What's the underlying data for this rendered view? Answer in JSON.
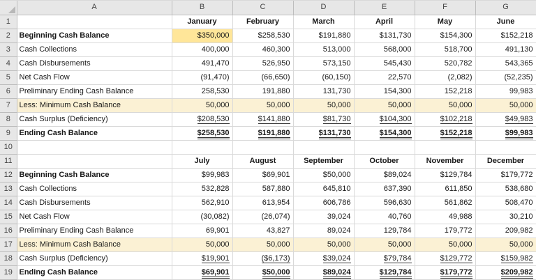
{
  "app": {
    "name": "spreadsheet-cash-budget"
  },
  "colors": {
    "grid_line": "#d9d9d9",
    "header_bg": "#e7e7e7",
    "header_border": "#bdbdbd",
    "cell_b2_highlight": "#ffe699",
    "minimum_row_highlight": "#fbf1d4"
  },
  "columns": [
    "A",
    "B",
    "C",
    "D",
    "E",
    "F",
    "G"
  ],
  "rows": [
    {
      "n": 1,
      "type": "months",
      "label": "",
      "values": [
        "January",
        "February",
        "March",
        "April",
        "May",
        "June"
      ]
    },
    {
      "n": 2,
      "label": "Beginning Cash Balance",
      "label_bold": true,
      "b2_fill": true,
      "values": [
        "$350,000",
        "$258,530",
        "$191,880",
        "$131,730",
        "$154,300",
        "$152,218"
      ]
    },
    {
      "n": 3,
      "label": "Cash Collections",
      "values": [
        "400,000",
        "460,300",
        "513,000",
        "568,000",
        "518,700",
        "491,130"
      ]
    },
    {
      "n": 4,
      "label": "Cash Disbursements",
      "values": [
        "491,470",
        "526,950",
        "573,150",
        "545,430",
        "520,782",
        "543,365"
      ]
    },
    {
      "n": 5,
      "label": "Net Cash Flow",
      "values": [
        "(91,470)",
        "(66,650)",
        "(60,150)",
        "22,570",
        "(2,082)",
        "(52,235)"
      ]
    },
    {
      "n": 6,
      "label": "Preliminary Ending Cash Balance",
      "values": [
        "258,530",
        "191,880",
        "131,730",
        "154,300",
        "152,218",
        "99,983"
      ]
    },
    {
      "n": 7,
      "label": "Less: Minimum Cash Balance",
      "row_fill": true,
      "values": [
        "50,000",
        "50,000",
        "50,000",
        "50,000",
        "50,000",
        "50,000"
      ]
    },
    {
      "n": 8,
      "label": "Cash Surplus (Deficiency)",
      "underline": "single",
      "values": [
        "$208,530",
        "$141,880",
        "$81,730",
        "$104,300",
        "$102,218",
        "$49,983"
      ]
    },
    {
      "n": 9,
      "label": "Ending Cash Balance",
      "label_bold": true,
      "values_bold": true,
      "underline": "double",
      "values": [
        "$258,530",
        "$191,880",
        "$131,730",
        "$154,300",
        "$152,218",
        "$99,983"
      ]
    },
    {
      "n": 10,
      "label": "",
      "values": [
        "",
        "",
        "",
        "",
        "",
        ""
      ]
    },
    {
      "n": 11,
      "type": "months",
      "label": "",
      "values": [
        "July",
        "August",
        "September",
        "October",
        "November",
        "December"
      ]
    },
    {
      "n": 12,
      "label": "Beginning Cash Balance",
      "label_bold": true,
      "values": [
        "$99,983",
        "$69,901",
        "$50,000",
        "$89,024",
        "$129,784",
        "$179,772"
      ]
    },
    {
      "n": 13,
      "label": "Cash Collections",
      "values": [
        "532,828",
        "587,880",
        "645,810",
        "637,390",
        "611,850",
        "538,680"
      ]
    },
    {
      "n": 14,
      "label": "Cash Disbursements",
      "values": [
        "562,910",
        "613,954",
        "606,786",
        "596,630",
        "561,862",
        "508,470"
      ]
    },
    {
      "n": 15,
      "label": "Net Cash Flow",
      "values": [
        "(30,082)",
        "(26,074)",
        "39,024",
        "40,760",
        "49,988",
        "30,210"
      ]
    },
    {
      "n": 16,
      "label": "Preliminary Ending Cash Balance",
      "values": [
        "69,901",
        "43,827",
        "89,024",
        "129,784",
        "179,772",
        "209,982"
      ]
    },
    {
      "n": 17,
      "label": "Less: Minimum Cash Balance",
      "row_fill": true,
      "values": [
        "50,000",
        "50,000",
        "50,000",
        "50,000",
        "50,000",
        "50,000"
      ]
    },
    {
      "n": 18,
      "label": "Cash Surplus (Deficiency)",
      "underline": "single",
      "values": [
        "$19,901",
        "($6,173)",
        "$39,024",
        "$79,784",
        "$129,772",
        "$159,982"
      ]
    },
    {
      "n": 19,
      "label": "Ending Cash Balance",
      "label_bold": true,
      "values_bold": true,
      "underline": "double",
      "values": [
        "$69,901",
        "$50,000",
        "$89,024",
        "$129,784",
        "$179,772",
        "$209,982"
      ]
    }
  ]
}
